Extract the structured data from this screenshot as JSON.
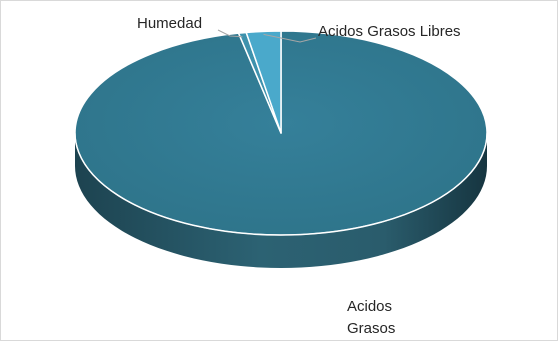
{
  "chart_data": {
    "type": "pie",
    "style": "3d",
    "title": "",
    "categories": [
      "Acidos Grasos",
      "Humedad",
      "Acidos Grasos Libres"
    ],
    "values": [
      96.7,
      0.6,
      2.7
    ],
    "colors": {
      "Acidos Grasos": "#31788e",
      "Humedad": "#3e92ad",
      "Acidos Grasos Libres": "#4aa9cb",
      "side_dark": "#1a3b45",
      "side_light": "#2f6a7c",
      "leader_line": "#a6a6a6"
    },
    "legend": "none",
    "labels": {
      "acidos_grasos_line1": "Acidos",
      "acidos_grasos_line2": "Grasos",
      "humedad": "Humedad",
      "acidos_grasos_libres": "Acidos Grasos Libres"
    }
  }
}
